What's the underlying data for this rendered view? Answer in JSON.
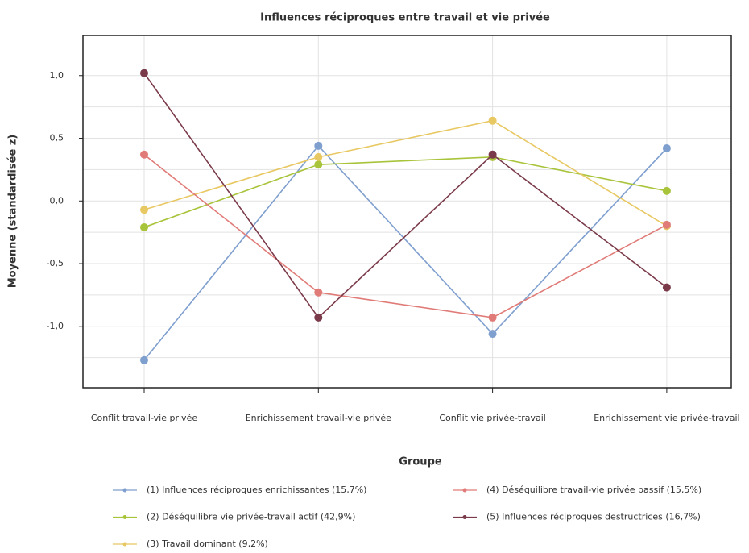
{
  "chart_data": {
    "type": "line",
    "title": "Influences réciproques entre travail et vie privée",
    "x_label": "Groupe",
    "y_label": "Moyenne (standardisée z)",
    "categories": [
      "Conflit travail-vie privée",
      "Enrichissement travail-vie privée",
      "Conflit vie privée-travail",
      "Enrichissement vie privée-travail"
    ],
    "series": [
      {
        "name": "(1) Influences réciproques enrichissantes (15,7%)",
        "color": "#7f9fcf",
        "values": [
          -1.27,
          0.44,
          -1.06,
          0.42
        ]
      },
      {
        "name": "(2) Déséquilibre vie privée-travail actif (42,9%)",
        "color": "#a8c43a",
        "values": [
          -0.21,
          0.29,
          0.35,
          0.08
        ]
      },
      {
        "name": "(3) Travail dominant (9,2%)",
        "color": "#e8c862",
        "values": [
          -0.07,
          0.35,
          0.64,
          -0.2
        ]
      },
      {
        "name": "(4) Déséquilibre travail-vie privée passif (15,5%)",
        "color": "#e07b78",
        "values": [
          0.37,
          -0.73,
          -0.93,
          -0.19
        ]
      },
      {
        "name": "(5) Influences réciproques destructrices (16,7%)",
        "color": "#7a3a4a",
        "values": [
          1.02,
          -0.93,
          0.37,
          -0.69
        ]
      }
    ],
    "ylim": [
      -1.49,
      1.32
    ],
    "yticks": [
      {
        "value": -1,
        "label": "-1,0"
      },
      {
        "value": -0.5,
        "label": "-0,5"
      },
      {
        "value": 0,
        "label": "0,0"
      },
      {
        "value": 0.5,
        "label": "0,5"
      },
      {
        "value": 1,
        "label": "1,0"
      }
    ],
    "y_minor_ticks": [
      -1.25,
      -0.75,
      -0.25,
      0.25,
      0.75
    ],
    "grid": true
  }
}
